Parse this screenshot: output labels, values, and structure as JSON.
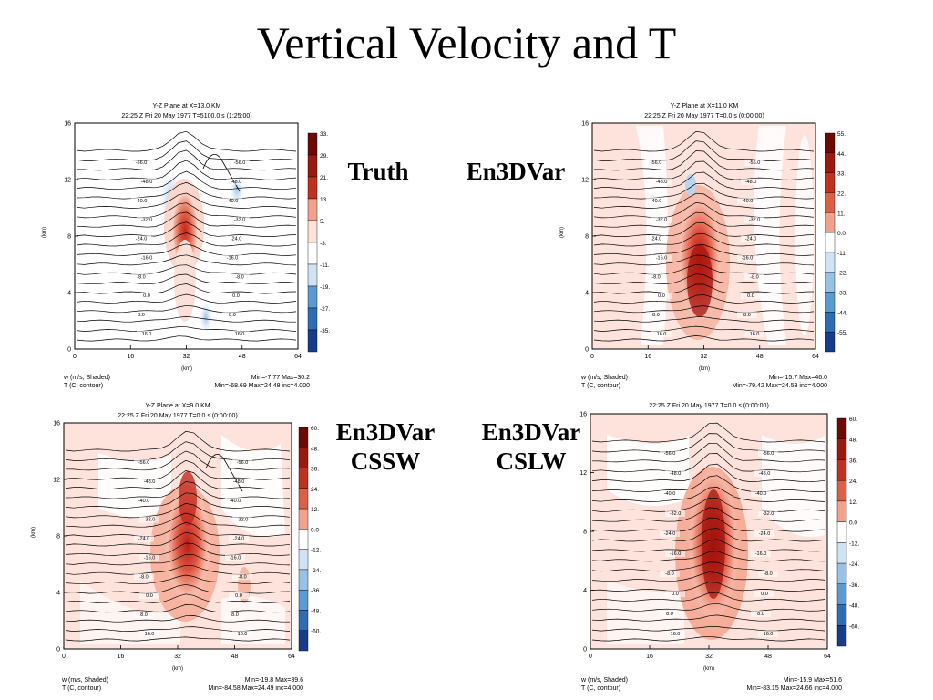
{
  "slide": {
    "title": "Vertical Velocity and T"
  },
  "annotations": {
    "truth": "Truth",
    "en3dvar": "En3DVar",
    "cssw_l1": "En3DVar",
    "cssw_l2": "CSSW",
    "cslw_l1": "En3DVar",
    "cslw_l2": "CSLW"
  },
  "colors": {
    "shade_positive": "#cc2a1e",
    "shade_negative": "#5f9fd6",
    "contour": "#000000"
  },
  "panels": [
    {
      "id": "truth",
      "header1": "Y-Z Plane at X=13.0 KM",
      "header2": "22:25 Z Fri 20 May 1977   T=5100.0 s (1:25:00)",
      "x_ticks": [
        "0",
        "16",
        "32",
        "48",
        "64"
      ],
      "y_ticks": [
        "0",
        "4",
        "8",
        "12",
        "16"
      ],
      "x_label": "(km)",
      "y_label": "(km)",
      "colorbar": [
        "33.",
        "29.",
        "21.",
        "13.",
        "5.",
        "-3.",
        "-11.",
        "-19.",
        "-27.",
        "-35."
      ],
      "footer_left1": "w (m/s, Shaded)",
      "footer_left2": "T (C, contour)",
      "footer_right1": "Min=-7.77 Max=30.2",
      "footer_right2": "Min=-68.69 Max=24.48 inc=4.000",
      "contour_labels": [
        "-56.0",
        "-48.0",
        "-40.0",
        "-32.0",
        "-24.0",
        "-16.0",
        "-8.0",
        "0.0",
        "8.0",
        "16.0",
        "-56.0",
        "-48.0",
        "-40.0",
        "-32.0",
        "-24.0",
        "-16.0",
        "-8.0",
        "0.0",
        "8.0",
        "16.0"
      ]
    },
    {
      "id": "en3dvar",
      "header1": "Y-Z Plane at X=11.0 KM",
      "header2": "22:25 Z Fri 20 May 1977   T=0.0 s (0:00:00)",
      "x_ticks": [
        "0",
        "16",
        "32",
        "48",
        "64"
      ],
      "y_ticks": [
        "0",
        "4",
        "8",
        "12",
        "16"
      ],
      "x_label": "(km)",
      "y_label": "(km)",
      "colorbar": [
        "55.",
        "44.",
        "33.",
        "22.",
        "11.",
        "0.0",
        "-11.",
        "-22.",
        "-33.",
        "-44.",
        "-55."
      ],
      "footer_left1": "w (m/s, Shaded)",
      "footer_left2": "T (C, contour)",
      "footer_right1": "Min=-15.7 Max=46.0",
      "footer_right2": "Min=-79.42 Max=24.53 inc=4.000",
      "contour_labels": [
        "-56.0",
        "-48.0",
        "-40.0",
        "-32.0",
        "-24.0",
        "-16.0",
        "-8.0",
        "0.0",
        "8.0",
        "16.0",
        "-56.0",
        "-48.0",
        "-40.0",
        "-32.0",
        "-24.0",
        "-16.0",
        "-8.0",
        "0.0",
        "8.0",
        "16.0"
      ]
    },
    {
      "id": "cssw",
      "header1": "Y-Z Plane at X=9.0 KM",
      "header2": "22:25 Z Fri 20 May 1977   T=0.0 s (0:00:00)",
      "x_ticks": [
        "0",
        "16",
        "32",
        "48",
        "64"
      ],
      "y_ticks": [
        "0",
        "4",
        "8",
        "12",
        "16"
      ],
      "x_label": "(km)",
      "y_label": "(km)",
      "colorbar": [
        "60.",
        "48.",
        "36.",
        "24.",
        "12.",
        "0.0",
        "-12.",
        "-24.",
        "-36.",
        "-48.",
        "-60."
      ],
      "footer_left1": "w (m/s, Shaded)",
      "footer_left2": "T (C, contour)",
      "footer_right1": "Min=-19.8 Max=39.6",
      "footer_right2": "Min=-84.58 Max=24.49 inc=4.000",
      "contour_labels": [
        "-56.0",
        "-48.0",
        "-40.0",
        "-32.0",
        "-24.0",
        "-16.0",
        "-8.0",
        "0.0",
        "8.0",
        "16.0",
        "-56.0",
        "-48.0",
        "-40.0",
        "-32.0",
        "-24.0",
        "-16.0",
        "-8.0",
        "0.0",
        "8.0",
        "16.0"
      ]
    },
    {
      "id": "cslw",
      "header1": "",
      "header2": "22:25 Z Fri 20 May 1977   T=0.0 s (0:00:00)",
      "x_ticks": [
        "0",
        "16",
        "32",
        "48",
        "64"
      ],
      "y_ticks": [
        "0",
        "4",
        "8",
        "12",
        "16"
      ],
      "x_label": "(km)",
      "y_label": "",
      "colorbar": [
        "60.",
        "48.",
        "36.",
        "24.",
        "12.",
        "0.0",
        "-12.",
        "-24.",
        "-36.",
        "-48.",
        "-60."
      ],
      "footer_left1": "w (m/s, Shaded)",
      "footer_left2": "T (C, contour)",
      "footer_right1": "Min=-15.9 Max=51.6",
      "footer_right2": "Min=-83.15 Max=24.66 inc=4.000",
      "contour_labels": [
        "-56.0",
        "-48.0",
        "-40.0",
        "-32.0",
        "-24.0",
        "-16.0",
        "-8.0",
        "0.0",
        "8.0",
        "16.0",
        "-56.0",
        "-48.0",
        "-40.0",
        "-32.0",
        "-24.0",
        "-16.0",
        "-8.0",
        "0.0",
        "8.0",
        "16.0"
      ]
    }
  ]
}
